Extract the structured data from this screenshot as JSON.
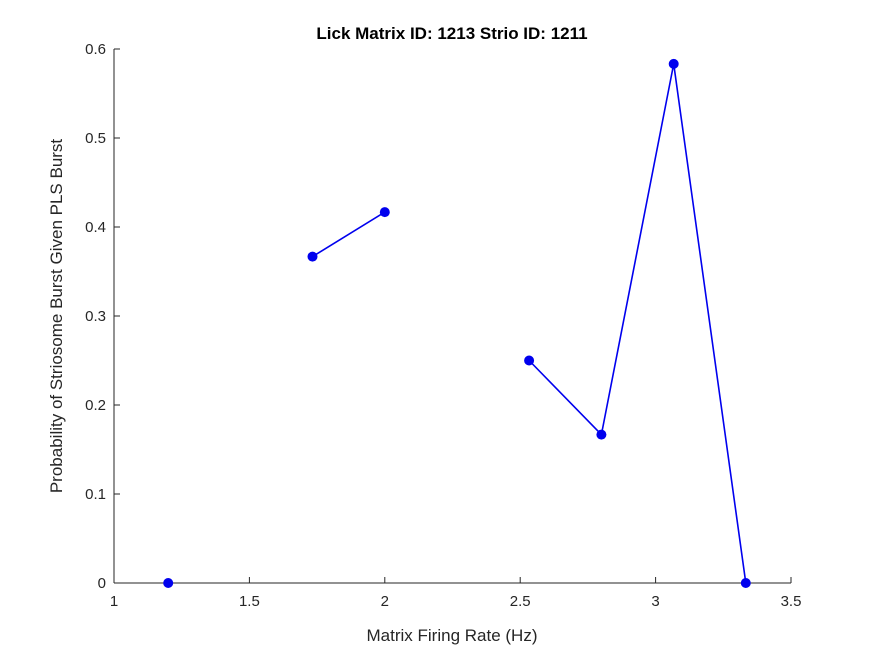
{
  "chart_data": {
    "type": "line",
    "title": "Lick Matrix ID: 1213 Strio ID: 1211",
    "xlabel": "Matrix Firing Rate (Hz)",
    "ylabel": "Probability of Striosome Burst Given PLS Burst",
    "xlim": [
      1,
      3.5
    ],
    "ylim": [
      0,
      0.6
    ],
    "xticks": [
      "1",
      "1.5",
      "2",
      "2.5",
      "3",
      "3.5"
    ],
    "yticks": [
      "0",
      "0.1",
      "0.2",
      "0.3",
      "0.4",
      "0.5",
      "0.6"
    ],
    "grid": false,
    "series": [
      {
        "color": "#0000ee",
        "points": [
          {
            "x": 1.2,
            "y": 0
          },
          {
            "x": 1.733,
            "y": null
          },
          {
            "x": 1.733,
            "y": 0.3667
          },
          {
            "x": 2.0,
            "y": 0.4167
          },
          {
            "x": 2.267,
            "y": null
          },
          {
            "x": 2.533,
            "y": 0.25
          },
          {
            "x": 2.8,
            "y": 0.1667
          },
          {
            "x": 3.067,
            "y": 0.5833
          },
          {
            "x": 3.333,
            "y": 0
          }
        ]
      }
    ]
  }
}
